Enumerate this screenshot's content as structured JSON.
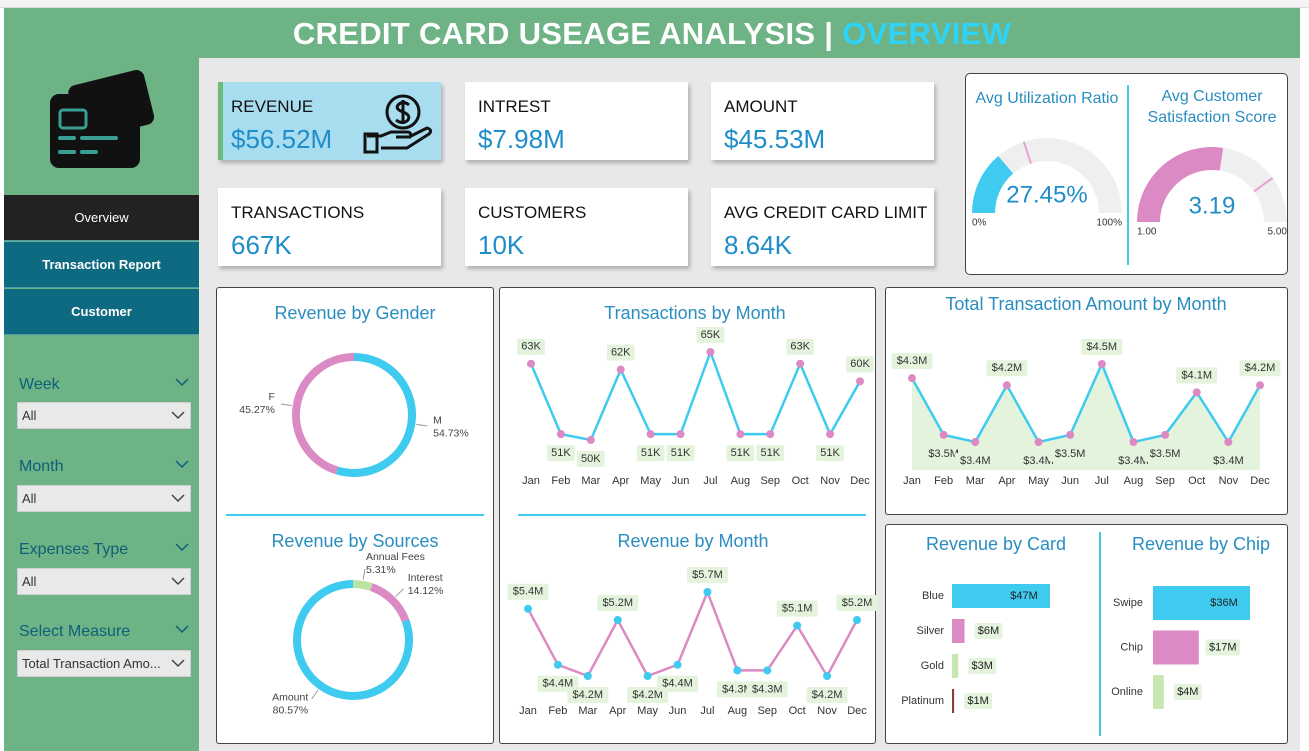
{
  "header": {
    "title": "CREDIT CARD USEAGE ANALYSIS |",
    "highlight": "OVERVIEW"
  },
  "nav": [
    "Overview",
    "Transaction Report",
    "Customer"
  ],
  "filters": [
    {
      "label": "Week",
      "value": "All"
    },
    {
      "label": "Month",
      "value": "All"
    },
    {
      "label": "Expenses Type",
      "value": "All"
    },
    {
      "label": "Select Measure",
      "value": "Total Transaction Amo..."
    }
  ],
  "kpis": [
    {
      "label": "REVENUE",
      "value": "$56.52M"
    },
    {
      "label": "INTREST",
      "value": "$7.98M"
    },
    {
      "label": "AMOUNT",
      "value": "$45.53M"
    },
    {
      "label": "TRANSACTIONS",
      "value": "667K"
    },
    {
      "label": "CUSTOMERS",
      "value": "10K"
    },
    {
      "label": "AVG CREDIT CARD LIMIT",
      "value": "8.64K"
    }
  ],
  "chart_data": [
    {
      "type": "gauge",
      "title": "Avg Utilization Ratio",
      "value": 27.45,
      "value_label": "27.45%",
      "range": [
        {
          "value": 0,
          "label": "0%"
        },
        {
          "value": 100,
          "label": "100%"
        }
      ],
      "target": 40,
      "color": "#3ecbef"
    },
    {
      "type": "gauge",
      "title": "Avg Customer Satisfaction Score",
      "value": 3.19,
      "range": [
        {
          "value": 1,
          "label": "1.00"
        },
        {
          "value": 5,
          "label": "5.00"
        }
      ],
      "target": 4.2,
      "color": "#dc8ac4"
    },
    {
      "type": "donut",
      "title": "Revenue by Gender",
      "categories": [
        "M",
        "F"
      ],
      "values": [
        54.73,
        45.27
      ],
      "value_labels": [
        "54.73%",
        "45.27%"
      ],
      "colors": [
        "#3ecbef",
        "#dc8ac4"
      ]
    },
    {
      "type": "donut",
      "title": "Revenue by Sources",
      "categories": [
        "Annual Fees",
        "Interest",
        "Amount"
      ],
      "values": [
        5.31,
        14.12,
        80.57
      ],
      "value_labels": [
        "5.31%",
        "14.12%",
        "80.57%"
      ],
      "colors": [
        "#b9e4a4",
        "#dc8ac4",
        "#3ecbef"
      ]
    },
    {
      "type": "line",
      "title": "Transactions by Month",
      "categories": [
        "Jan",
        "Feb",
        "Mar",
        "Apr",
        "May",
        "Jun",
        "Jul",
        "Aug",
        "Sep",
        "Oct",
        "Nov",
        "Dec"
      ],
      "values": [
        63,
        51,
        50,
        62,
        51,
        51,
        65,
        51,
        51,
        63,
        51,
        60
      ],
      "value_labels": [
        "63K",
        "51K",
        "50K",
        "62K",
        "51K",
        "51K",
        "65K",
        "51K",
        "51K",
        "63K",
        "51K",
        "60K"
      ],
      "color": "#3ecbef",
      "marker_color": "#dc8ac4"
    },
    {
      "type": "area",
      "title": "Total Transaction Amount by Month",
      "categories": [
        "Jan",
        "Feb",
        "Mar",
        "Apr",
        "May",
        "Jun",
        "Jul",
        "Aug",
        "Sep",
        "Oct",
        "Nov",
        "Dec"
      ],
      "values": [
        4.3,
        3.5,
        3.4,
        4.2,
        3.4,
        3.5,
        4.5,
        3.4,
        3.5,
        4.1,
        3.4,
        4.2
      ],
      "value_labels": [
        "$4.3M",
        "$3.5M",
        "$3.4M",
        "$4.2M",
        "$3.4M",
        "$3.5M",
        "$4.5M",
        "$3.4M",
        "$3.5M",
        "$4.1M",
        "$3.4M",
        "$4.2M"
      ],
      "color": "#3ecbef",
      "marker_color": "#dc8ac4",
      "fill": "#e4f3dc"
    },
    {
      "type": "line",
      "title": "Revenue by Month",
      "categories": [
        "Jan",
        "Feb",
        "Mar",
        "Apr",
        "May",
        "Jun",
        "Jul",
        "Aug",
        "Sep",
        "Oct",
        "Nov",
        "Dec"
      ],
      "values": [
        5.4,
        4.4,
        4.2,
        5.2,
        4.2,
        4.4,
        5.7,
        4.3,
        4.3,
        5.1,
        4.2,
        5.2
      ],
      "value_labels": [
        "$5.4M",
        "$4.4M",
        "$4.2M",
        "$5.2M",
        "$4.2M",
        "$4.4M",
        "$5.7M",
        "$4.3M",
        "$4.3M",
        "$5.1M",
        "$4.2M",
        "$5.2M"
      ],
      "color": "#dc8ac4",
      "marker_color": "#3ecbef"
    },
    {
      "type": "bar",
      "horizontal": true,
      "title": "Revenue by Card",
      "categories": [
        "Blue",
        "Silver",
        "Gold",
        "Platinum"
      ],
      "values": [
        47,
        6,
        3,
        1
      ],
      "value_labels": [
        "$47M",
        "$6M",
        "$3M",
        "$1M"
      ],
      "colors": [
        "#3ecbef",
        "#dc8ac4",
        "#c8e6b0",
        "#8b3a3a"
      ]
    },
    {
      "type": "bar",
      "horizontal": true,
      "title": "Revenue by Chip",
      "categories": [
        "Swipe",
        "Chip",
        "Online"
      ],
      "values": [
        36,
        17,
        4
      ],
      "value_labels": [
        "$36M",
        "$17M",
        "$4M"
      ],
      "colors": [
        "#3ecbef",
        "#dc8ac4",
        "#c8e6b0"
      ]
    }
  ]
}
